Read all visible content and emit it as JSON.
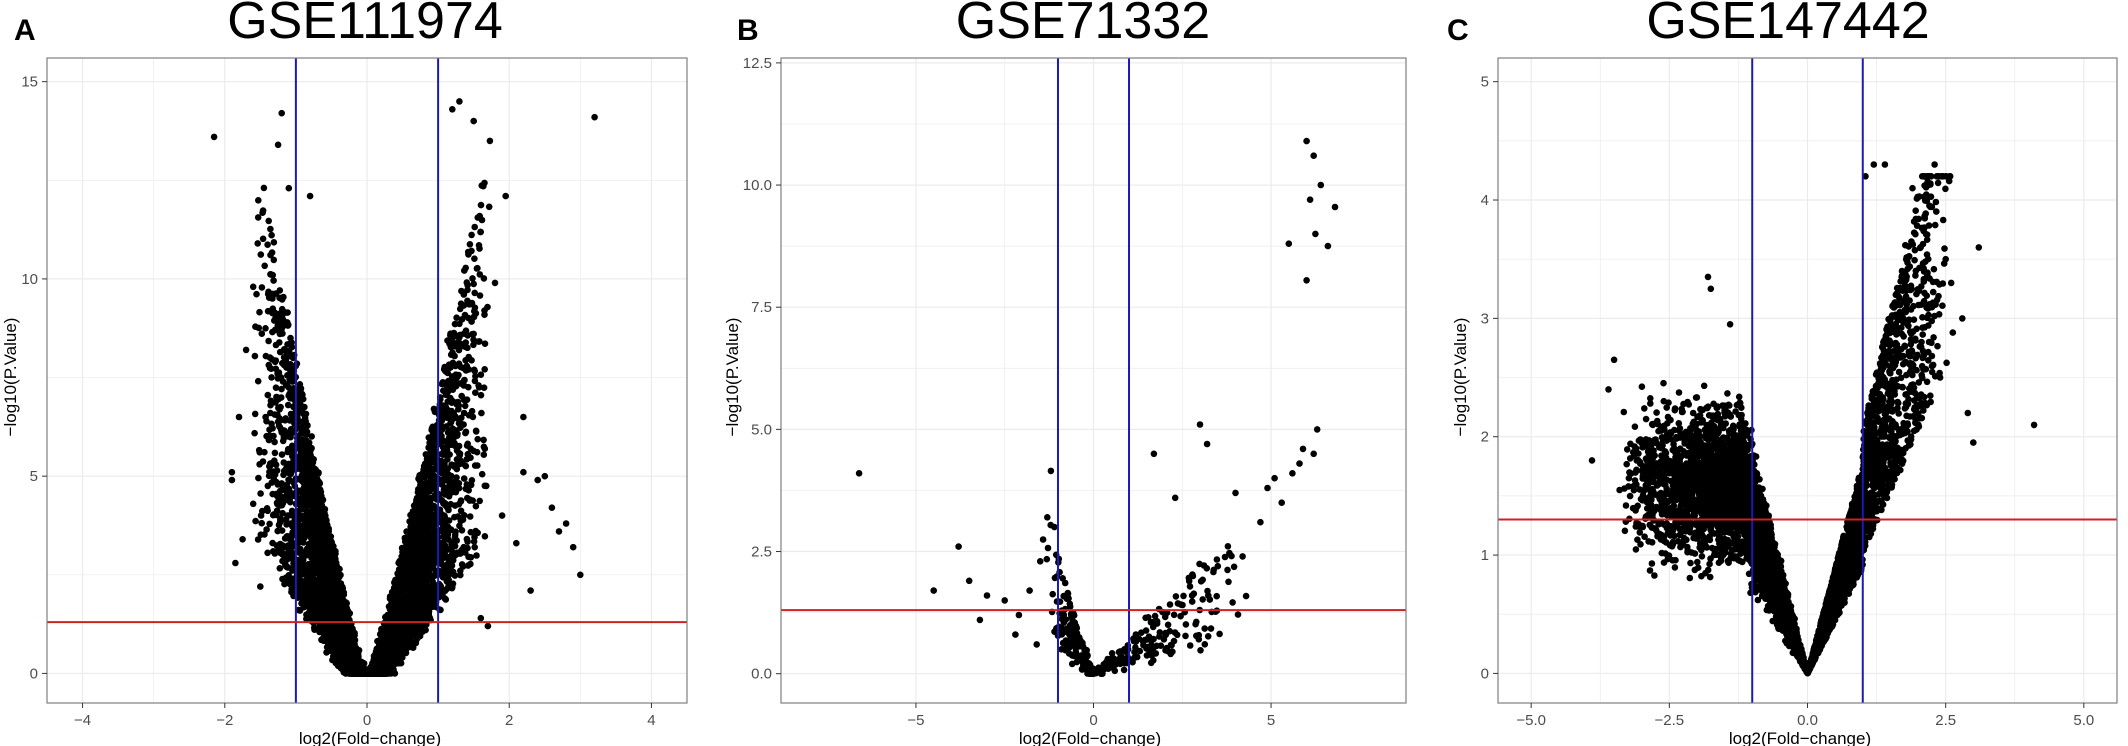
{
  "figure": {
    "line_colors": {
      "threshold_fc": "#1a1ab8",
      "threshold_p": "#cc2222",
      "points": "#000000",
      "grid": "#ebebeb",
      "frame": "#7f7f7f"
    }
  },
  "chart_data": [
    {
      "type": "scatter",
      "panel_label": "A",
      "title": "GSE111974",
      "xlabel": "log2(Fold−change)",
      "ylabel": "−log10(P.Value)",
      "xlim": [
        -4.5,
        4.5
      ],
      "ylim": [
        -0.75,
        15.6
      ],
      "xticks": [
        -4,
        -2,
        0,
        2,
        4
      ],
      "xtick_labels": [
        "−4",
        "−2",
        "0",
        "2",
        "4"
      ],
      "yticks": [
        0,
        5,
        10,
        15
      ],
      "ytick_labels": [
        "0",
        "5",
        "10",
        "15"
      ],
      "vlines": [
        -1,
        1
      ],
      "hline": 1.3,
      "grid": true,
      "points": [
        [
          -2.15,
          13.6
        ],
        [
          3.2,
          14.1
        ],
        [
          1.95,
          12.1
        ],
        [
          1.3,
          14.5
        ],
        [
          1.5,
          14.0
        ],
        [
          1.2,
          14.3
        ],
        [
          -1.2,
          14.2
        ],
        [
          -1.25,
          13.4
        ],
        [
          -1.1,
          12.3
        ],
        [
          -0.8,
          12.1
        ],
        [
          -1.6,
          9.8
        ],
        [
          -1.7,
          8.2
        ],
        [
          -1.8,
          6.5
        ],
        [
          1.8,
          9.9
        ],
        [
          2.2,
          6.5
        ],
        [
          2.5,
          5.0
        ],
        [
          2.6,
          4.2
        ],
        [
          2.8,
          3.8
        ],
        [
          3.0,
          2.5
        ],
        [
          2.9,
          3.2
        ],
        [
          2.7,
          3.6
        ],
        [
          2.4,
          4.9
        ],
        [
          2.2,
          5.1
        ],
        [
          1.9,
          4.0
        ],
        [
          -1.9,
          4.9
        ],
        [
          -1.9,
          5.1
        ],
        [
          -1.85,
          2.8
        ],
        [
          -1.75,
          3.4
        ],
        [
          -1.6,
          4.3
        ],
        [
          2.1,
          3.3
        ],
        [
          2.3,
          2.1
        ],
        [
          1.7,
          1.2
        ],
        [
          -1.5,
          2.2
        ],
        [
          1.6,
          1.4
        ]
      ],
      "cloud": {
        "type": "v",
        "xmin": -1.6,
        "xmax": 1.75,
        "ymax": 13.8,
        "width": 0.06,
        "gap_y": 0.9,
        "n": 5500,
        "seed": 11
      }
    },
    {
      "type": "scatter",
      "panel_label": "B",
      "title": "GSE71332",
      "xlabel": "log2(Fold−change)",
      "ylabel": "−log10(P.Value)",
      "xlim": [
        -8.8,
        8.8
      ],
      "ylim": [
        -0.6,
        12.6
      ],
      "xticks": [
        -5,
        0,
        5
      ],
      "xtick_labels": [
        "−5",
        "0",
        "5"
      ],
      "yticks": [
        0,
        2.5,
        5,
        7.5,
        10,
        12.5
      ],
      "ytick_labels": [
        "0.0",
        "2.5",
        "5.0",
        "7.5",
        "10.0",
        "12.5"
      ],
      "vlines": [
        -1,
        1
      ],
      "hline": 1.3,
      "grid": true,
      "points": [
        [
          -6.6,
          4.1
        ],
        [
          -1.2,
          4.15
        ],
        [
          6.0,
          10.9
        ],
        [
          6.2,
          10.6
        ],
        [
          6.4,
          10.0
        ],
        [
          6.1,
          9.7
        ],
        [
          6.8,
          9.55
        ],
        [
          6.25,
          9.0
        ],
        [
          5.5,
          8.8
        ],
        [
          6.6,
          8.75
        ],
        [
          6.0,
          8.05
        ],
        [
          6.3,
          5.0
        ],
        [
          6.2,
          4.5
        ],
        [
          3.0,
          5.1
        ],
        [
          3.2,
          4.7
        ],
        [
          5.1,
          4.0
        ],
        [
          5.8,
          4.3
        ],
        [
          -3.8,
          2.6
        ],
        [
          -3.5,
          1.9
        ],
        [
          -3.0,
          1.6
        ],
        [
          -2.5,
          1.5
        ],
        [
          -2.1,
          1.2
        ],
        [
          -1.8,
          1.7
        ],
        [
          -1.5,
          2.3
        ],
        [
          -1.3,
          3.2
        ],
        [
          -1.1,
          3.0
        ],
        [
          1.7,
          4.5
        ],
        [
          2.3,
          3.6
        ],
        [
          4.0,
          3.7
        ],
        [
          4.7,
          3.1
        ],
        [
          5.3,
          3.5
        ],
        [
          2.8,
          2.0
        ],
        [
          3.5,
          2.2
        ],
        [
          4.2,
          2.4
        ],
        [
          -2.2,
          0.8
        ],
        [
          -1.6,
          0.6
        ],
        [
          1.5,
          0.7
        ],
        [
          2.1,
          1.0
        ],
        [
          -0.6,
          0.2
        ],
        [
          0.4,
          0.3
        ],
        [
          5.6,
          4.1
        ],
        [
          5.9,
          4.6
        ],
        [
          4.9,
          3.8
        ],
        [
          -0.9,
          0.5
        ],
        [
          0.9,
          0.45
        ],
        [
          -4.5,
          1.7
        ],
        [
          -3.2,
          1.1
        ]
      ],
      "cloud": {
        "type": "v",
        "xmin": -1.5,
        "xmax": 4.6,
        "ymax": 3.8,
        "width": 0.28,
        "gap_y": 0.0,
        "n": 340,
        "seed": 23
      }
    },
    {
      "type": "scatter",
      "panel_label": "C",
      "title": "GSE147442",
      "xlabel": "log2(Fold−change)",
      "ylabel": "−log10(P.Value)",
      "xlim": [
        -5.6,
        5.6
      ],
      "ylim": [
        -0.25,
        5.2
      ],
      "xticks": [
        -5,
        -2.5,
        0,
        2.5,
        5
      ],
      "xtick_labels": [
        "−5.0",
        "−2.5",
        "0.0",
        "2.5",
        "5.0"
      ],
      "yticks": [
        0,
        1,
        2,
        3,
        4,
        5
      ],
      "ytick_labels": [
        "0",
        "1",
        "2",
        "3",
        "4",
        "5"
      ],
      "vlines": [
        -1,
        1
      ],
      "hline": 1.3,
      "grid": true,
      "points": [
        [
          4.1,
          2.1
        ],
        [
          3.1,
          3.6
        ],
        [
          2.3,
          4.3
        ],
        [
          1.2,
          4.3
        ],
        [
          1.4,
          4.3
        ],
        [
          1.9,
          4.1
        ],
        [
          1.05,
          4.2
        ],
        [
          -1.8,
          3.35
        ],
        [
          -1.75,
          3.25
        ],
        [
          -1.4,
          2.95
        ],
        [
          -3.5,
          2.65
        ],
        [
          -3.6,
          2.4
        ],
        [
          -3.9,
          1.8
        ],
        [
          -3.4,
          1.55
        ],
        [
          2.8,
          3.0
        ],
        [
          2.6,
          3.3
        ],
        [
          2.5,
          3.5
        ],
        [
          2.9,
          2.2
        ],
        [
          3.0,
          1.95
        ],
        [
          2.4,
          2.5
        ],
        [
          2.2,
          2.8
        ],
        [
          -2.6,
          2.3
        ],
        [
          -2.8,
          2.1
        ],
        [
          -3.1,
          1.9
        ]
      ],
      "cloud": {
        "type": "asym",
        "left_xmin": -3.4,
        "left_ymax": 2.85,
        "right_xmax": 2.7,
        "right_ymax": 4.2,
        "n": 6500,
        "seed": 37
      }
    }
  ]
}
